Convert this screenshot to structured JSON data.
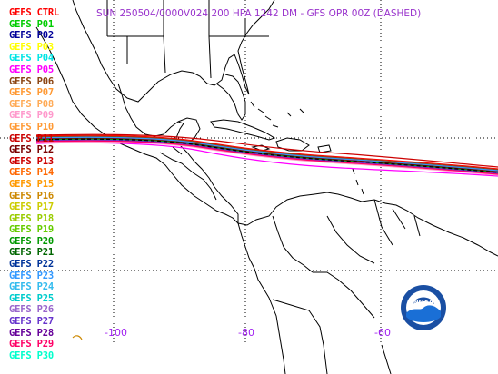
{
  "title": "SUN 250504/0000V024  200 HPA 1242 DM - GFS OPR 00Z (DASHED)",
  "legend": [
    {
      "label": "GEFS CTRL",
      "color": "#ff0000"
    },
    {
      "label": "GEFS P01",
      "color": "#00cc00"
    },
    {
      "label": "GEFS P02",
      "color": "#000099"
    },
    {
      "label": "GEFS P03",
      "color": "#ffff00"
    },
    {
      "label": "GEFS P04",
      "color": "#00e5e5"
    },
    {
      "label": "GEFS P05",
      "color": "#ff00ff"
    },
    {
      "label": "GEFS P06",
      "color": "#8b4513"
    },
    {
      "label": "GEFS P07",
      "color": "#ff9933"
    },
    {
      "label": "GEFS P08",
      "color": "#ffaa55"
    },
    {
      "label": "GEFS P09",
      "color": "#ff99cc"
    },
    {
      "label": "GEFS P10",
      "color": "#ff9933"
    },
    {
      "label": "GEFS P11",
      "color": "#cc0000"
    },
    {
      "label": "GEFS P12",
      "color": "#7a0000"
    },
    {
      "label": "GEFS P13",
      "color": "#cc0000"
    },
    {
      "label": "GEFS P14",
      "color": "#ff6600"
    },
    {
      "label": "GEFS P15",
      "color": "#ff9900"
    },
    {
      "label": "GEFS P16",
      "color": "#cc8800"
    },
    {
      "label": "GEFS P17",
      "color": "#cccc00"
    },
    {
      "label": "GEFS P18",
      "color": "#99cc00"
    },
    {
      "label": "GEFS P19",
      "color": "#66cc00"
    },
    {
      "label": "GEFS P20",
      "color": "#009900"
    },
    {
      "label": "GEFS P21",
      "color": "#006600"
    },
    {
      "label": "GEFS P22",
      "color": "#003399"
    },
    {
      "label": "GEFS P23",
      "color": "#3399ff"
    },
    {
      "label": "GEFS P24",
      "color": "#33bbee"
    },
    {
      "label": "GEFS P25",
      "color": "#00cccc"
    },
    {
      "label": "GEFS P26",
      "color": "#9966cc"
    },
    {
      "label": "GEFS P27",
      "color": "#6633cc"
    },
    {
      "label": "GEFS P28",
      "color": "#660099"
    },
    {
      "label": "GEFS P29",
      "color": "#ff0066"
    },
    {
      "label": "GEFS P30",
      "color": "#00ffcc"
    }
  ],
  "axes": {
    "longitude_labels": [
      "-100",
      "-80",
      "-60"
    ]
  },
  "logo": {
    "text": "NOAA",
    "icon": "noaa-logo-icon"
  },
  "colors": {
    "coastline": "#000000",
    "grid": "#000000",
    "axis_label": "#a020f0",
    "title": "#9933cc"
  }
}
